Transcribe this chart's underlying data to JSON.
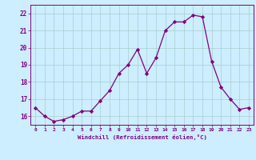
{
  "x": [
    0,
    1,
    2,
    3,
    4,
    5,
    6,
    7,
    8,
    9,
    10,
    11,
    12,
    13,
    14,
    15,
    16,
    17,
    18,
    19,
    20,
    21,
    22,
    23
  ],
  "y": [
    16.5,
    16.0,
    15.7,
    15.8,
    16.0,
    16.3,
    16.3,
    16.9,
    17.5,
    18.5,
    19.0,
    19.9,
    18.5,
    19.4,
    21.0,
    21.5,
    21.5,
    21.9,
    21.8,
    19.2,
    17.7,
    17.0,
    16.4,
    16.5
  ],
  "xlabel": "Windchill (Refroidissement éolien,°C)",
  "ylim": [
    15.5,
    22.5
  ],
  "yticks": [
    16,
    17,
    18,
    19,
    20,
    21,
    22
  ],
  "xticks": [
    0,
    1,
    2,
    3,
    4,
    5,
    6,
    7,
    8,
    9,
    10,
    11,
    12,
    13,
    14,
    15,
    16,
    17,
    18,
    19,
    20,
    21,
    22,
    23
  ],
  "line_color": "#800080",
  "marker_color": "#800080",
  "bg_color": "#cceeff",
  "grid_color": "#aacccc",
  "font_color": "#800080",
  "spine_color": "#800080"
}
